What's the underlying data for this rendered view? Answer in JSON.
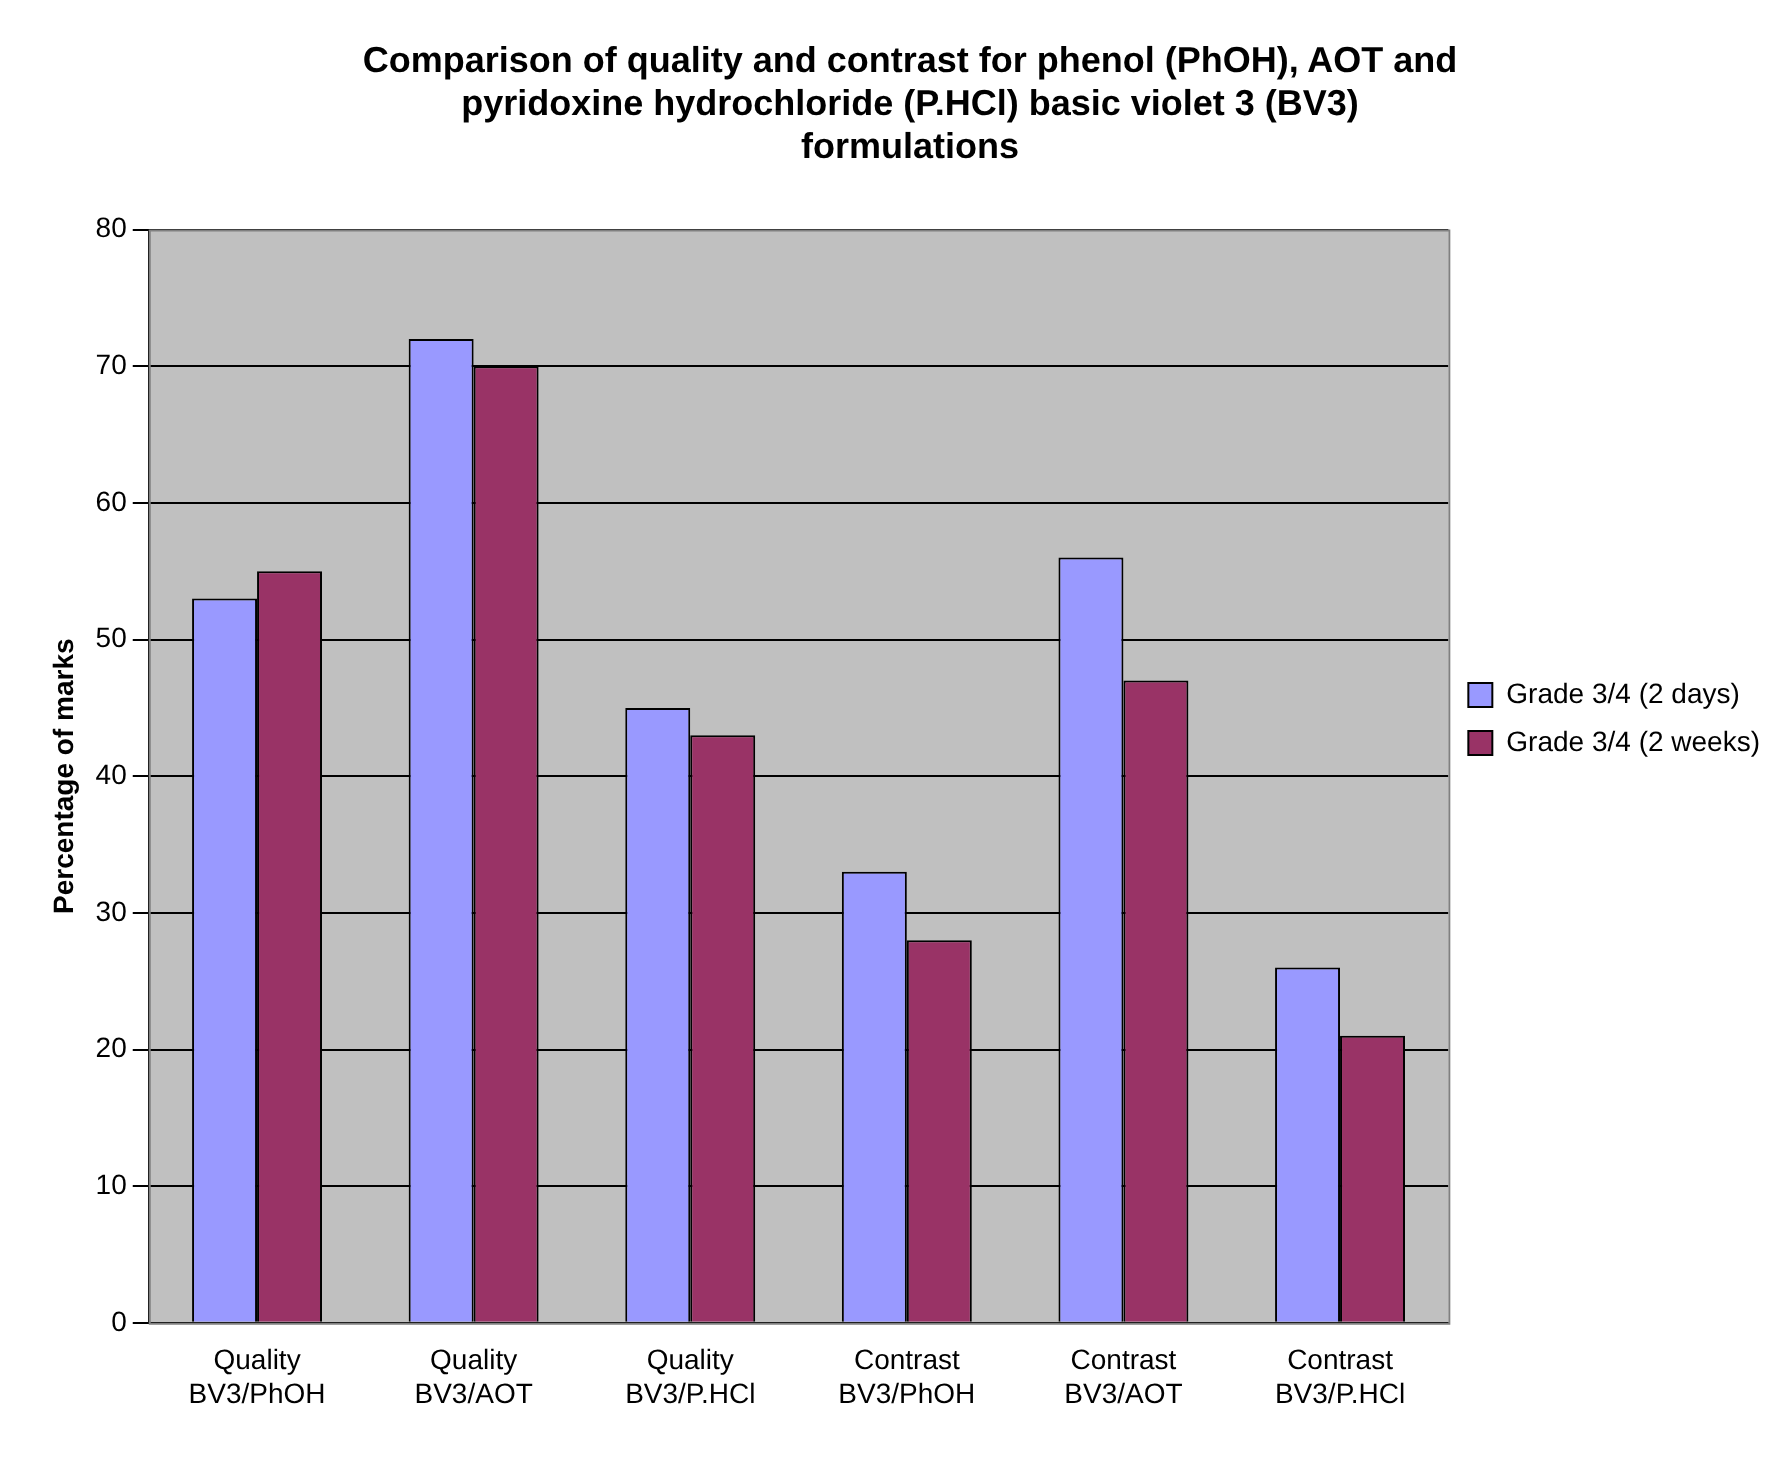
{
  "chart_data": {
    "type": "bar",
    "title": "Comparison of quality and contrast for phenol (PhOH), AOT and pyridoxine hydrochloride (P.HCl) basic violet 3 (BV3) formulations",
    "ylabel": "Percentage of marks",
    "categories": [
      "Quality\nBV3/PhOH",
      "Quality\nBV3/AOT",
      "Quality\nBV3/P.HCl",
      "Contrast\nBV3/PhOH",
      "Contrast\nBV3/AOT",
      "Contrast\nBV3/P.HCl"
    ],
    "series": [
      {
        "name": "Grade 3/4 (2 days)",
        "color": "#9999ff",
        "values": [
          53,
          72,
          45,
          33,
          56,
          26
        ]
      },
      {
        "name": "Grade 3/4 (2 weeks)",
        "color": "#993366",
        "values": [
          55,
          70,
          43,
          28,
          47,
          21
        ]
      }
    ],
    "ylim": [
      0,
      80
    ],
    "yticks": [
      0,
      10,
      20,
      30,
      40,
      50,
      60,
      70,
      80
    ],
    "grid": "y",
    "legend": "right"
  }
}
